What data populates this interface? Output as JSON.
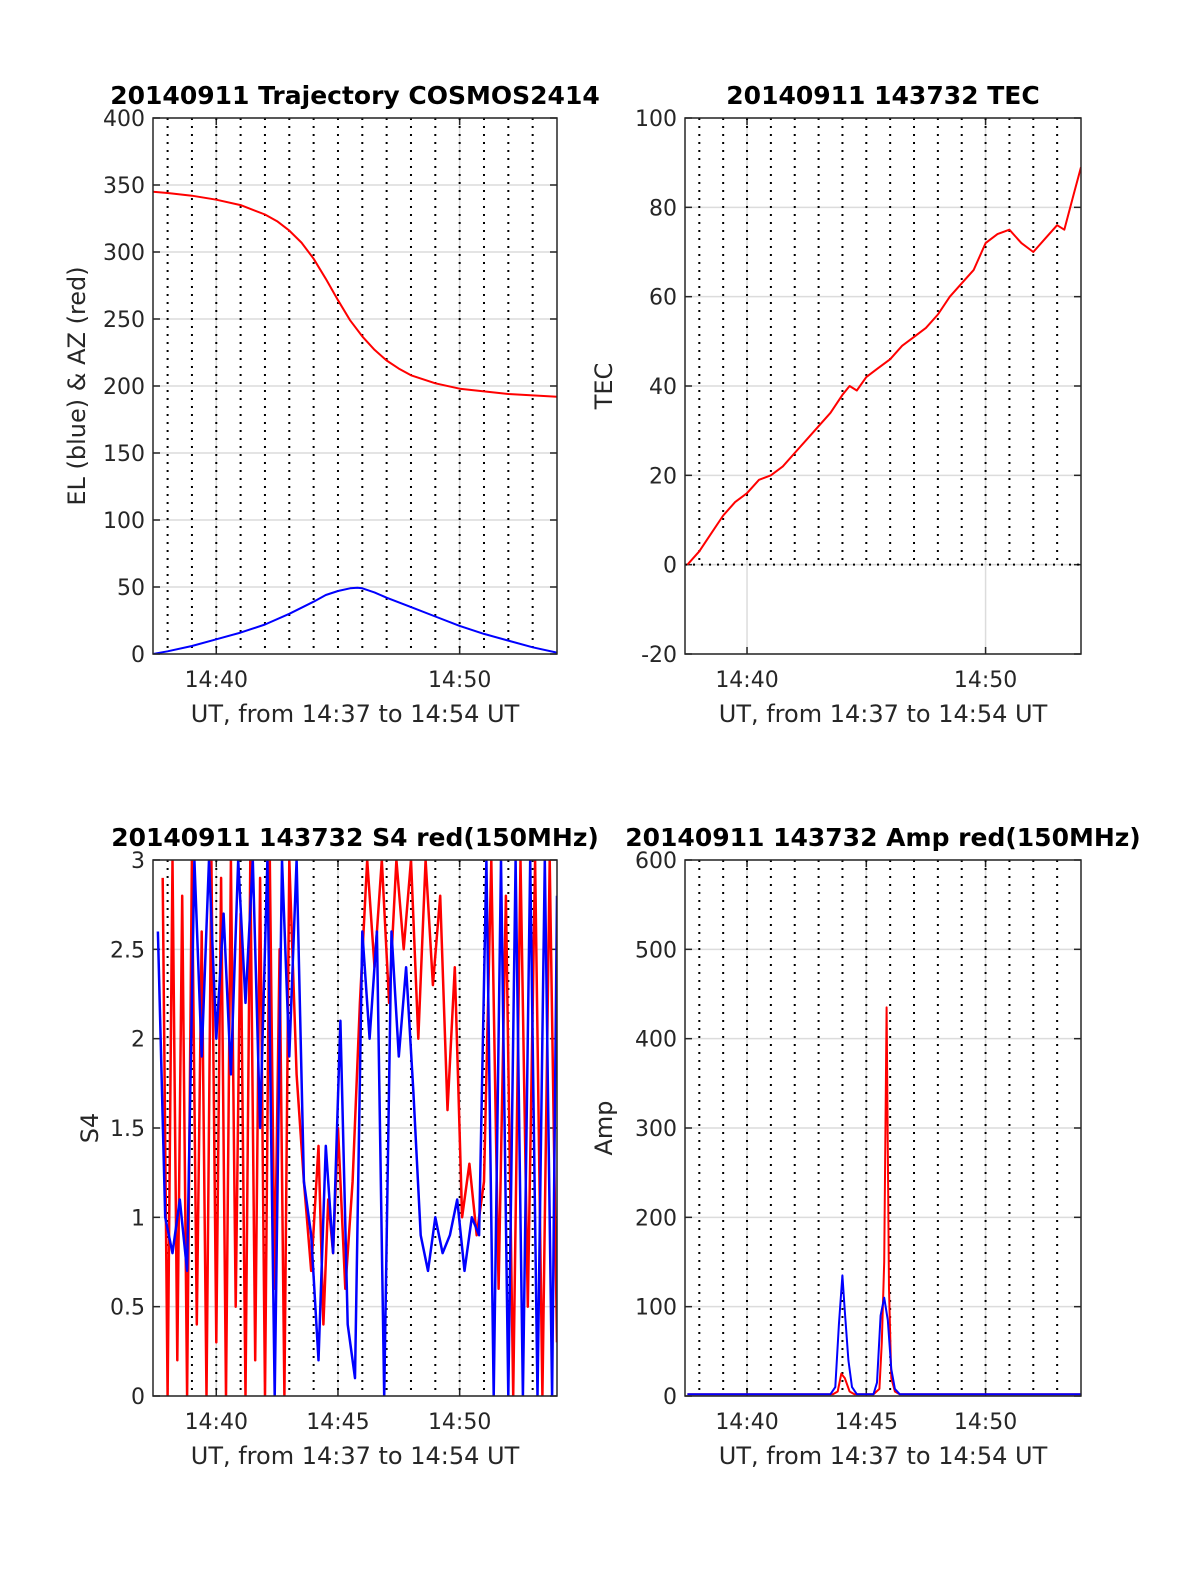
{
  "chart_data": [
    {
      "id": "traj",
      "type": "line",
      "title": "20140911 Trajectory COSMOS2414",
      "xlabel": "UT, from 14:37 to 14:54 UT",
      "ylabel": "EL (blue) & AZ (red)",
      "xlim": [
        37.4,
        54.0
      ],
      "ylim": [
        0,
        400
      ],
      "xticks": [
        {
          "value": 40,
          "label": "14:40"
        },
        {
          "value": 50,
          "label": "14:50"
        }
      ],
      "yticks": [
        0,
        50,
        100,
        150,
        200,
        250,
        300,
        350,
        400
      ],
      "series": [
        {
          "key": "az",
          "color": "#ff0000",
          "x": [
            37.4,
            38,
            39,
            40,
            41,
            42,
            42.5,
            43,
            43.5,
            44,
            44.5,
            45,
            45.5,
            46,
            46.5,
            47,
            47.5,
            48,
            49,
            50,
            51,
            52,
            53,
            54
          ],
          "y": [
            345,
            344,
            342,
            339,
            335,
            328,
            323,
            316,
            307,
            295,
            280,
            264,
            249,
            237,
            227,
            219,
            213,
            208,
            202,
            198,
            196,
            194,
            193,
            192
          ]
        },
        {
          "key": "el",
          "color": "#0000ff",
          "x": [
            37.4,
            38,
            39,
            40,
            41,
            42,
            43,
            44,
            44.5,
            45,
            45.5,
            45.8,
            46,
            46.5,
            47,
            48,
            49,
            50,
            51,
            52,
            53,
            54
          ],
          "y": [
            0,
            2,
            6,
            11,
            16,
            22,
            30,
            39,
            44,
            47,
            49,
            49.5,
            49,
            46,
            42,
            35,
            28,
            21,
            15,
            10,
            5,
            1
          ]
        }
      ]
    },
    {
      "id": "tec",
      "type": "line",
      "title": "20140911 143732 TEC",
      "xlabel": "UT, from 14:37 to 14:54 UT",
      "ylabel": "TEC",
      "xlim": [
        37.4,
        54.0
      ],
      "ylim": [
        -20,
        100
      ],
      "xticks": [
        {
          "value": 40,
          "label": "14:40"
        },
        {
          "value": 50,
          "label": "14:50"
        }
      ],
      "yticks": [
        -20,
        0,
        20,
        40,
        60,
        80,
        100
      ],
      "series": [
        {
          "key": "tec",
          "color": "#ff0000",
          "x": [
            37.5,
            38,
            38.5,
            39,
            39.5,
            40,
            40.5,
            41,
            41.5,
            42,
            42.5,
            43,
            43.5,
            44,
            44.3,
            44.6,
            45,
            45.5,
            46,
            46.5,
            47,
            47.5,
            48,
            48.5,
            49,
            49.5,
            50,
            50.5,
            51,
            51.5,
            52,
            52.5,
            53,
            53.3,
            53.7,
            54.0
          ],
          "y": [
            0,
            3,
            7,
            11,
            14,
            16,
            19,
            20,
            22,
            25,
            28,
            31,
            34,
            38,
            40,
            39,
            42,
            44,
            46,
            49,
            51,
            53,
            56,
            60,
            63,
            66,
            72,
            74,
            75,
            72,
            70,
            73,
            76,
            75,
            83,
            89
          ]
        }
      ]
    },
    {
      "id": "s4",
      "type": "line",
      "title": "20140911 143732 S4 red(150MHz)",
      "xlabel": "UT, from 14:37 to 14:54 UT",
      "ylabel": "S4",
      "xlim": [
        37.4,
        54.0
      ],
      "ylim": [
        0,
        3
      ],
      "xticks": [
        {
          "value": 40,
          "label": "14:40"
        },
        {
          "value": 45,
          "label": "14:45"
        },
        {
          "value": 50,
          "label": "14:50"
        }
      ],
      "yticks": [
        0,
        0.5,
        1,
        1.5,
        2,
        2.5,
        3
      ],
      "series": [
        {
          "key": "s4_red",
          "color": "#ff0000",
          "x": [
            37.8,
            38.0,
            38.2,
            38.4,
            38.6,
            38.8,
            39.0,
            39.2,
            39.4,
            39.6,
            39.8,
            40.0,
            40.2,
            40.4,
            40.6,
            40.8,
            41.0,
            41.2,
            41.4,
            41.6,
            41.8,
            42.0,
            42.2,
            42.4,
            42.6,
            42.8,
            43.0,
            43.3,
            43.6,
            43.9,
            44.2,
            44.4,
            44.6,
            44.8,
            45.0,
            45.3,
            45.6,
            45.9,
            46.2,
            46.5,
            46.8,
            47.1,
            47.4,
            47.7,
            48.0,
            48.3,
            48.6,
            48.9,
            49.2,
            49.5,
            49.8,
            50.1,
            50.4,
            50.7,
            51.0,
            51.3,
            51.6,
            51.9,
            52.2,
            52.5,
            52.8,
            53.1,
            53.4,
            53.7,
            54.0
          ],
          "y": [
            2.9,
            0.0,
            3.0,
            0.2,
            2.8,
            0.0,
            3.0,
            0.4,
            2.6,
            0.0,
            3.0,
            0.3,
            2.9,
            0.0,
            3.0,
            0.5,
            2.7,
            0.0,
            3.0,
            0.2,
            2.9,
            0.0,
            3.0,
            0.6,
            2.5,
            0.0,
            3.0,
            1.8,
            1.2,
            0.7,
            1.4,
            0.4,
            1.1,
            0.8,
            1.5,
            0.6,
            1.2,
            2.2,
            3.0,
            2.4,
            3.0,
            2.2,
            3.0,
            2.5,
            3.0,
            2.0,
            3.0,
            2.3,
            2.8,
            1.6,
            2.4,
            1.0,
            1.3,
            0.9,
            1.2,
            3.0,
            0.6,
            2.8,
            0.0,
            3.0,
            0.5,
            3.0,
            0.0,
            3.0,
            0.3
          ]
        },
        {
          "key": "s4_blue",
          "color": "#0000ff",
          "x": [
            37.6,
            37.9,
            38.2,
            38.5,
            38.8,
            39.1,
            39.4,
            39.7,
            40.0,
            40.3,
            40.6,
            40.9,
            41.2,
            41.5,
            41.8,
            42.1,
            42.4,
            42.7,
            43.0,
            43.3,
            43.6,
            43.9,
            44.2,
            44.5,
            44.8,
            45.1,
            45.4,
            45.7,
            46.0,
            46.3,
            46.6,
            46.9,
            47.2,
            47.5,
            47.8,
            48.1,
            48.4,
            48.7,
            49.0,
            49.3,
            49.6,
            49.9,
            50.2,
            50.5,
            50.8,
            51.1,
            51.4,
            51.7,
            52.0,
            52.3,
            52.6,
            52.9,
            53.2,
            53.5,
            53.8,
            54.0
          ],
          "y": [
            2.6,
            1.0,
            0.8,
            1.1,
            0.7,
            3.0,
            1.9,
            3.0,
            2.0,
            2.7,
            1.8,
            3.0,
            2.2,
            3.0,
            1.5,
            3.0,
            0.0,
            3.0,
            1.9,
            3.0,
            1.2,
            0.9,
            0.2,
            1.4,
            0.8,
            2.1,
            0.4,
            0.1,
            2.6,
            2.0,
            2.6,
            0.0,
            2.6,
            1.9,
            2.4,
            1.7,
            0.9,
            0.7,
            1.0,
            0.8,
            0.9,
            1.1,
            0.7,
            1.0,
            0.9,
            3.0,
            0.0,
            3.0,
            0.0,
            3.0,
            0.0,
            3.0,
            0.0,
            3.0,
            0.0,
            2.8
          ]
        }
      ]
    },
    {
      "id": "amp",
      "type": "line",
      "title": "20140911 143732 Amp red(150MHz)",
      "xlabel": "UT, from 14:37 to 14:54 UT",
      "ylabel": "Amp",
      "xlim": [
        37.4,
        54.0
      ],
      "ylim": [
        0,
        600
      ],
      "xticks": [
        {
          "value": 40,
          "label": "14:40"
        },
        {
          "value": 45,
          "label": "14:45"
        },
        {
          "value": 50,
          "label": "14:50"
        }
      ],
      "yticks": [
        0,
        100,
        200,
        300,
        400,
        500,
        600
      ],
      "series": [
        {
          "key": "amp_red",
          "color": "#ff0000",
          "x": [
            37.5,
            43.6,
            43.8,
            43.95,
            44.1,
            44.3,
            44.5,
            45.3,
            45.55,
            45.65,
            45.75,
            45.85,
            45.95,
            46.05,
            46.2,
            46.4,
            54.0
          ],
          "y": [
            2,
            2,
            5,
            25,
            20,
            5,
            2,
            2,
            8,
            60,
            150,
            435,
            120,
            20,
            5,
            2,
            2
          ]
        },
        {
          "key": "amp_blue",
          "color": "#0000ff",
          "x": [
            37.5,
            43.5,
            43.7,
            43.85,
            44.0,
            44.1,
            44.25,
            44.4,
            44.6,
            45.3,
            45.45,
            45.6,
            45.75,
            45.9,
            46.05,
            46.2,
            46.4,
            54.0
          ],
          "y": [
            2,
            2,
            10,
            80,
            135,
            95,
            40,
            10,
            2,
            2,
            15,
            90,
            110,
            85,
            30,
            8,
            2,
            2
          ]
        }
      ]
    }
  ]
}
